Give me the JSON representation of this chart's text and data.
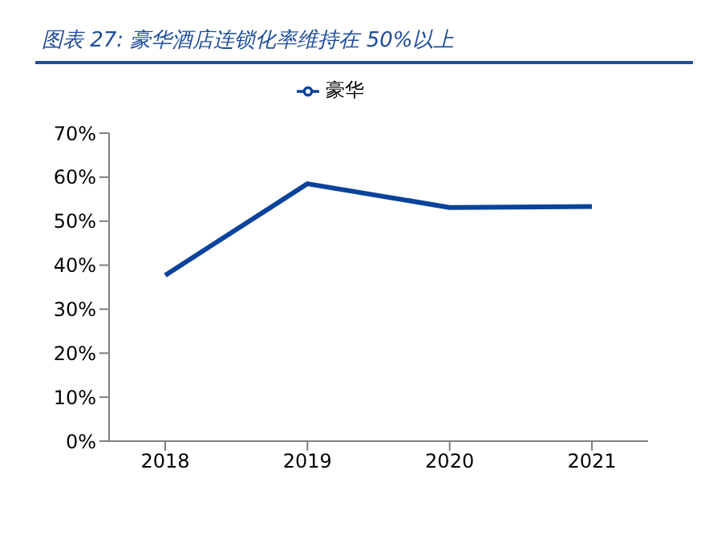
{
  "chart_data": {
    "type": "line",
    "title": "图表 27: 豪华酒店连锁化率维持在 50%以上",
    "categories": [
      "2018",
      "2019",
      "2020",
      "2021"
    ],
    "series": [
      {
        "name": "豪华",
        "color": "#0a439b",
        "values": [
          37.7,
          58.5,
          53.1,
          53.3
        ]
      }
    ],
    "ylim": [
      0,
      70
    ],
    "yticks": [
      {
        "value": 0,
        "label": "0%"
      },
      {
        "value": 10,
        "label": "10%"
      },
      {
        "value": 20,
        "label": "20%"
      },
      {
        "value": 30,
        "label": "30%"
      },
      {
        "value": 40,
        "label": "40%"
      },
      {
        "value": 50,
        "label": "50%"
      },
      {
        "value": 60,
        "label": "60%"
      },
      {
        "value": 70,
        "label": "70%"
      }
    ],
    "legend": "top",
    "grid": false,
    "marker": "none",
    "line_style": "solid"
  }
}
